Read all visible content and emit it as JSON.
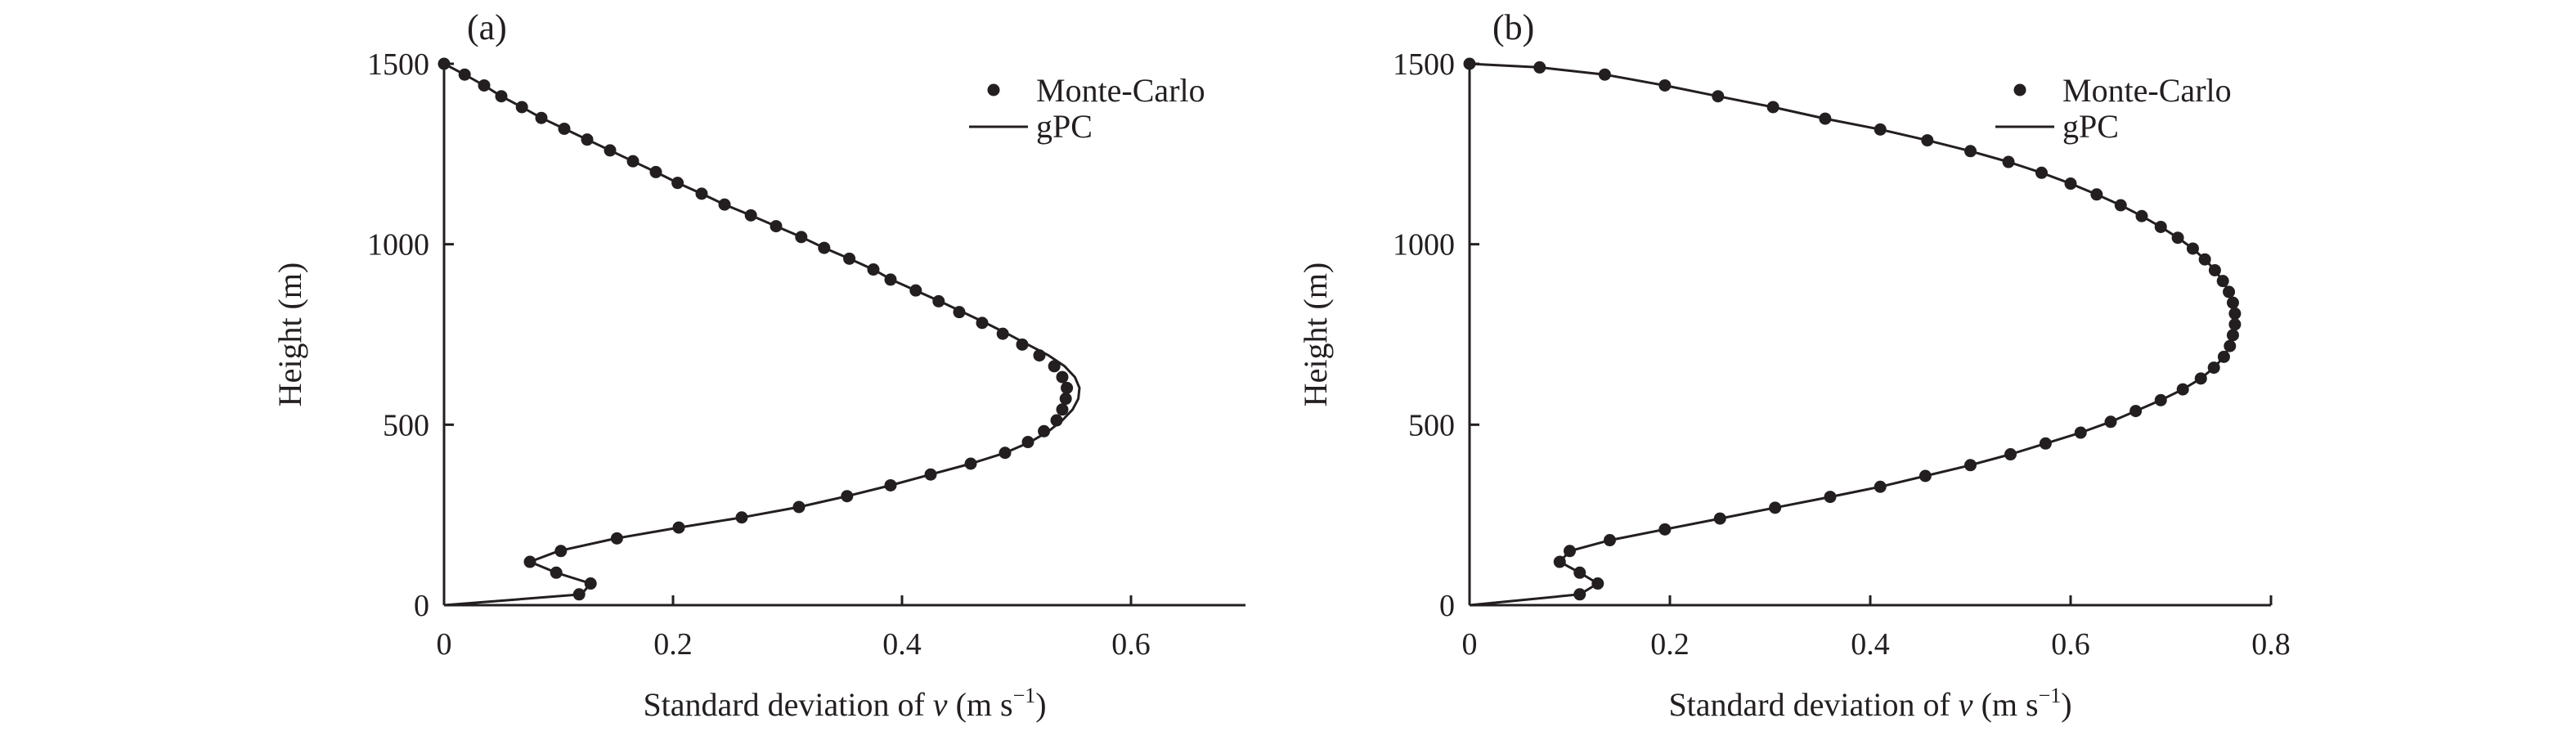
{
  "chart_data": [
    {
      "type": "line",
      "panel_label": "(a)",
      "xlabel": "Standard deviation of",
      "xlabel_var": "v",
      "xlabel_unit_open": "(m s",
      "xlabel_unit_exp": "−1",
      "xlabel_unit_close": ")",
      "ylabel": "Height (m)",
      "xlim": [
        0,
        0.7
      ],
      "ylim": [
        0,
        1500
      ],
      "xticks": [
        0,
        0.2,
        0.4,
        0.6
      ],
      "xtick_labels": [
        "0",
        "0.2",
        "0.4",
        "0.6"
      ],
      "yticks": [
        0,
        500,
        1000,
        1500
      ],
      "ytick_labels": [
        "0",
        "500",
        "1000",
        "1500"
      ],
      "legend": {
        "position": "top-right",
        "entries": [
          "Monte-Carlo",
          "gPC"
        ]
      },
      "series": [
        {
          "name": "Monte-Carlo",
          "kind": "scatter",
          "points": [
            [
              0.118,
              30
            ],
            [
              0.128,
              60
            ],
            [
              0.098,
              90
            ],
            [
              0.075,
              120
            ],
            [
              0.102,
              150
            ],
            [
              0.151,
              185
            ],
            [
              0.205,
              215
            ],
            [
              0.26,
              243
            ],
            [
              0.31,
              272
            ],
            [
              0.352,
              302
            ],
            [
              0.39,
              332
            ],
            [
              0.425,
              362
            ],
            [
              0.46,
              392
            ],
            [
              0.49,
              422
            ],
            [
              0.51,
              452
            ],
            [
              0.524,
              482
            ],
            [
              0.535,
              512
            ],
            [
              0.54,
              542
            ],
            [
              0.543,
              572
            ],
            [
              0.544,
              602
            ],
            [
              0.54,
              632
            ],
            [
              0.533,
              662
            ],
            [
              0.52,
              692
            ],
            [
              0.505,
              722
            ],
            [
              0.488,
              752
            ],
            [
              0.47,
              782
            ],
            [
              0.45,
              812
            ],
            [
              0.432,
              842
            ],
            [
              0.412,
              872
            ],
            [
              0.39,
              902
            ],
            [
              0.375,
              930
            ],
            [
              0.354,
              960
            ],
            [
              0.332,
              990
            ],
            [
              0.312,
              1020
            ],
            [
              0.29,
              1050
            ],
            [
              0.268,
              1080
            ],
            [
              0.245,
              1110
            ],
            [
              0.225,
              1140
            ],
            [
              0.204,
              1170
            ],
            [
              0.185,
              1200
            ],
            [
              0.165,
              1230
            ],
            [
              0.145,
              1260
            ],
            [
              0.125,
              1290
            ],
            [
              0.105,
              1320
            ],
            [
              0.085,
              1350
            ],
            [
              0.068,
              1380
            ],
            [
              0.05,
              1410
            ],
            [
              0.035,
              1440
            ],
            [
              0.018,
              1470
            ],
            [
              0.0,
              1500
            ]
          ]
        },
        {
          "name": "gPC",
          "kind": "line",
          "points": [
            [
              0.0,
              0
            ],
            [
              0.12,
              30
            ],
            [
              0.128,
              60
            ],
            [
              0.098,
              90
            ],
            [
              0.075,
              120
            ],
            [
              0.1,
              150
            ],
            [
              0.15,
              185
            ],
            [
              0.205,
              215
            ],
            [
              0.26,
              243
            ],
            [
              0.31,
              272
            ],
            [
              0.352,
              302
            ],
            [
              0.39,
              332
            ],
            [
              0.425,
              362
            ],
            [
              0.46,
              392
            ],
            [
              0.49,
              422
            ],
            [
              0.512,
              452
            ],
            [
              0.528,
              482
            ],
            [
              0.54,
              512
            ],
            [
              0.549,
              542
            ],
            [
              0.554,
              572
            ],
            [
              0.555,
              602
            ],
            [
              0.551,
              632
            ],
            [
              0.542,
              662
            ],
            [
              0.528,
              692
            ],
            [
              0.51,
              722
            ],
            [
              0.492,
              752
            ],
            [
              0.473,
              782
            ],
            [
              0.453,
              812
            ],
            [
              0.433,
              842
            ],
            [
              0.412,
              872
            ],
            [
              0.392,
              900
            ],
            [
              0.375,
              930
            ],
            [
              0.354,
              960
            ],
            [
              0.332,
              990
            ],
            [
              0.312,
              1020
            ],
            [
              0.29,
              1050
            ],
            [
              0.268,
              1080
            ],
            [
              0.245,
              1110
            ],
            [
              0.225,
              1140
            ],
            [
              0.204,
              1170
            ],
            [
              0.185,
              1200
            ],
            [
              0.165,
              1230
            ],
            [
              0.145,
              1260
            ],
            [
              0.125,
              1290
            ],
            [
              0.105,
              1320
            ],
            [
              0.085,
              1350
            ],
            [
              0.068,
              1380
            ],
            [
              0.05,
              1410
            ],
            [
              0.035,
              1440
            ],
            [
              0.018,
              1470
            ],
            [
              0.0,
              1500
            ]
          ]
        }
      ]
    },
    {
      "type": "line",
      "panel_label": "(b)",
      "xlabel": "Standard deviation of",
      "xlabel_var": "v",
      "xlabel_unit_open": "(m s",
      "xlabel_unit_exp": "−1",
      "xlabel_unit_close": ")",
      "ylabel": "Height (m)",
      "xlim": [
        0,
        0.8
      ],
      "ylim": [
        0,
        1500
      ],
      "xticks": [
        0,
        0.2,
        0.4,
        0.6,
        0.8
      ],
      "xtick_labels": [
        "0",
        "0.2",
        "0.4",
        "0.6",
        "0.8"
      ],
      "yticks": [
        0,
        500,
        1000,
        1500
      ],
      "ytick_labels": [
        "0",
        "500",
        "1000",
        "1500"
      ],
      "legend": {
        "position": "top-right",
        "entries": [
          "Monte-Carlo",
          "gPC"
        ]
      },
      "series": [
        {
          "name": "Monte-Carlo",
          "kind": "scatter",
          "points": [
            [
              0.11,
              30
            ],
            [
              0.128,
              60
            ],
            [
              0.11,
              90
            ],
            [
              0.09,
              120
            ],
            [
              0.1,
              150
            ],
            [
              0.14,
              180
            ],
            [
              0.195,
              210
            ],
            [
              0.25,
              240
            ],
            [
              0.305,
              270
            ],
            [
              0.36,
              300
            ],
            [
              0.41,
              328
            ],
            [
              0.455,
              358
            ],
            [
              0.5,
              388
            ],
            [
              0.54,
              418
            ],
            [
              0.575,
              448
            ],
            [
              0.61,
              478
            ],
            [
              0.64,
              508
            ],
            [
              0.665,
              538
            ],
            [
              0.69,
              568
            ],
            [
              0.712,
              598
            ],
            [
              0.73,
              628
            ],
            [
              0.743,
              658
            ],
            [
              0.753,
              688
            ],
            [
              0.759,
              718
            ],
            [
              0.762,
              748
            ],
            [
              0.764,
              778
            ],
            [
              0.764,
              808
            ],
            [
              0.762,
              838
            ],
            [
              0.758,
              868
            ],
            [
              0.752,
              898
            ],
            [
              0.744,
              928
            ],
            [
              0.734,
              958
            ],
            [
              0.722,
              988
            ],
            [
              0.707,
              1018
            ],
            [
              0.69,
              1048
            ],
            [
              0.671,
              1078
            ],
            [
              0.65,
              1108
            ],
            [
              0.626,
              1138
            ],
            [
              0.6,
              1168
            ],
            [
              0.571,
              1198
            ],
            [
              0.538,
              1228
            ],
            [
              0.5,
              1258
            ],
            [
              0.457,
              1288
            ],
            [
              0.41,
              1318
            ],
            [
              0.355,
              1348
            ],
            [
              0.303,
              1380
            ],
            [
              0.248,
              1410
            ],
            [
              0.195,
              1440
            ],
            [
              0.135,
              1470
            ],
            [
              0.07,
              1490
            ],
            [
              0.0,
              1500
            ]
          ]
        },
        {
          "name": "gPC",
          "kind": "line",
          "points": [
            [
              0.0,
              0
            ],
            [
              0.11,
              30
            ],
            [
              0.128,
              60
            ],
            [
              0.11,
              90
            ],
            [
              0.09,
              120
            ],
            [
              0.1,
              150
            ],
            [
              0.14,
              180
            ],
            [
              0.195,
              210
            ],
            [
              0.25,
              240
            ],
            [
              0.305,
              270
            ],
            [
              0.36,
              300
            ],
            [
              0.41,
              328
            ],
            [
              0.455,
              358
            ],
            [
              0.5,
              388
            ],
            [
              0.54,
              418
            ],
            [
              0.575,
              448
            ],
            [
              0.61,
              478
            ],
            [
              0.64,
              508
            ],
            [
              0.665,
              538
            ],
            [
              0.69,
              568
            ],
            [
              0.712,
              598
            ],
            [
              0.73,
              628
            ],
            [
              0.743,
              658
            ],
            [
              0.753,
              688
            ],
            [
              0.759,
              718
            ],
            [
              0.762,
              748
            ],
            [
              0.764,
              778
            ],
            [
              0.764,
              808
            ],
            [
              0.762,
              838
            ],
            [
              0.758,
              868
            ],
            [
              0.752,
              898
            ],
            [
              0.744,
              928
            ],
            [
              0.734,
              958
            ],
            [
              0.722,
              988
            ],
            [
              0.707,
              1018
            ],
            [
              0.69,
              1048
            ],
            [
              0.671,
              1078
            ],
            [
              0.65,
              1108
            ],
            [
              0.626,
              1138
            ],
            [
              0.6,
              1168
            ],
            [
              0.571,
              1198
            ],
            [
              0.538,
              1228
            ],
            [
              0.5,
              1258
            ],
            [
              0.457,
              1288
            ],
            [
              0.41,
              1318
            ],
            [
              0.355,
              1348
            ],
            [
              0.303,
              1380
            ],
            [
              0.248,
              1410
            ],
            [
              0.195,
              1440
            ],
            [
              0.135,
              1470
            ],
            [
              0.07,
              1490
            ],
            [
              0.0,
              1500
            ]
          ]
        }
      ]
    }
  ],
  "colors": {
    "ink": "#231f20"
  }
}
